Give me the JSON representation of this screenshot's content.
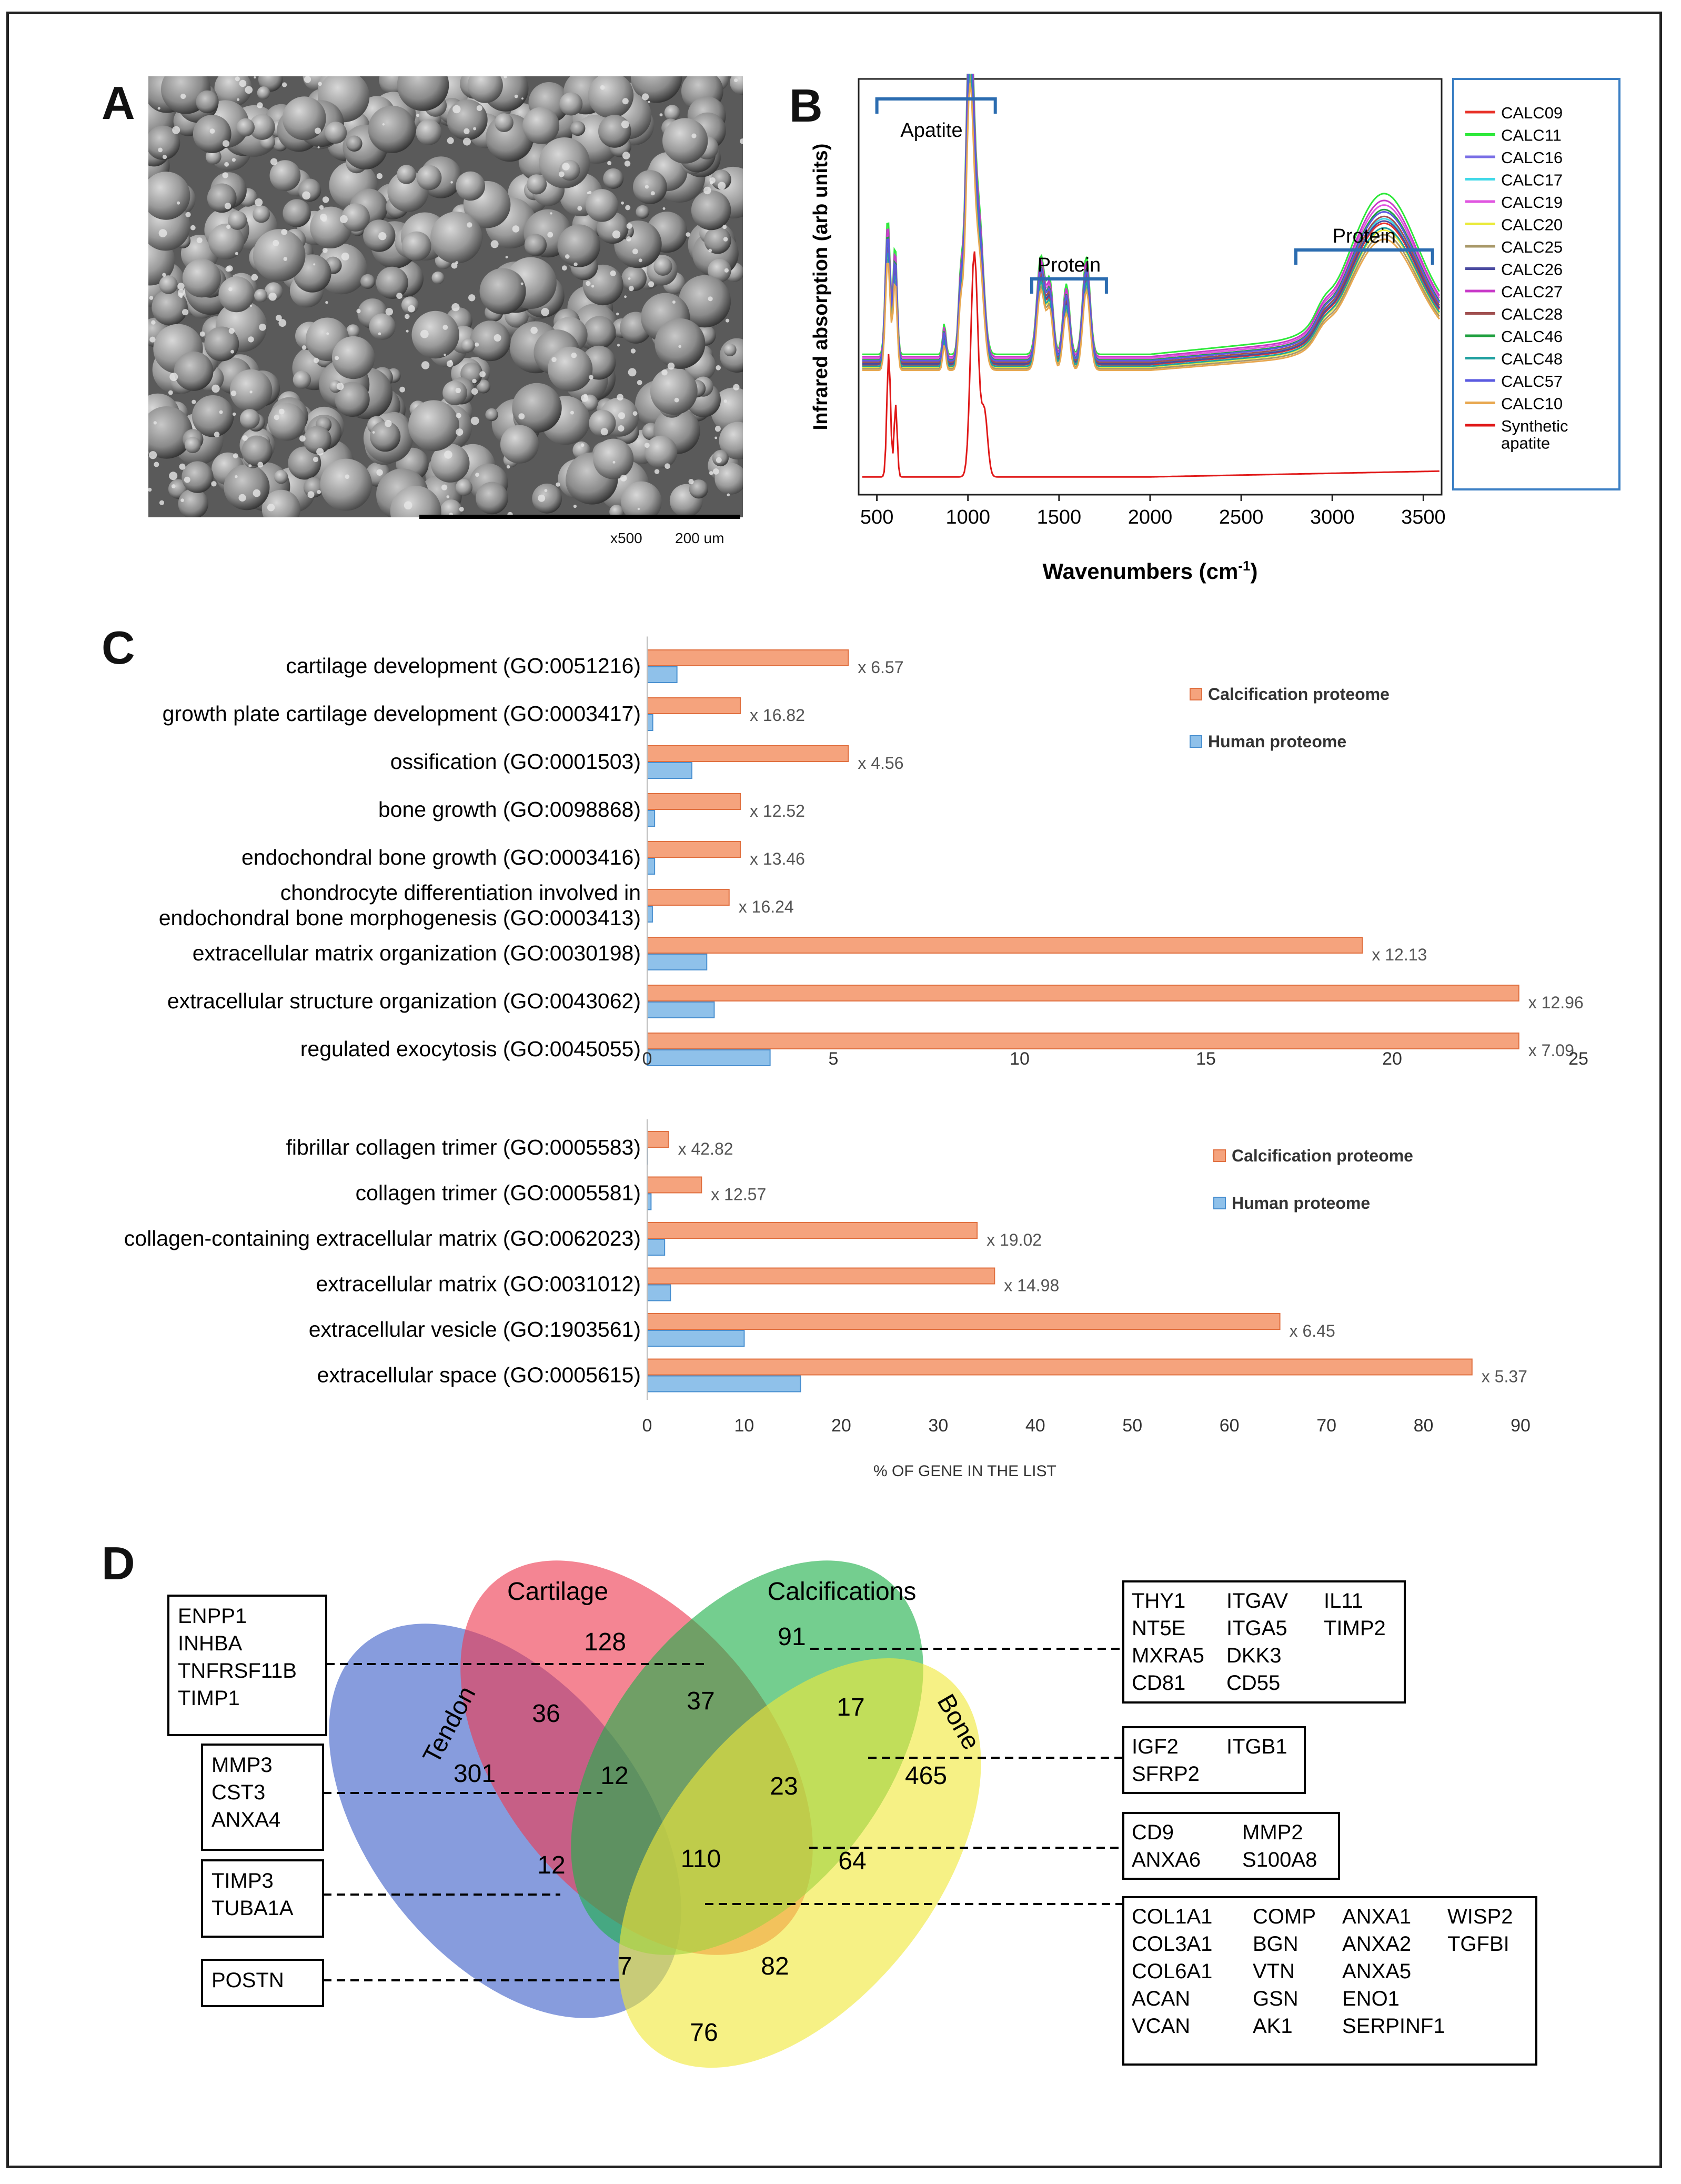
{
  "panels": {
    "a": "A",
    "b": "B",
    "c": "C",
    "d": "D"
  },
  "sem": {
    "magnification": "x500",
    "scale": "200 um"
  },
  "ir": {
    "ylabel": "Infrared absorption (arb units)",
    "xlabel_main": "Wavenumbers (cm",
    "xlabel_sup": "-1",
    "xlabel_close": ")",
    "ticks": [
      "500",
      "1000",
      "1500",
      "2000",
      "2500",
      "3000",
      "3500"
    ],
    "bracket_apatite": "Apatite",
    "bracket_protein1": "Protein",
    "bracket_protein2": "Protein",
    "legend": [
      {
        "name": "CALC09",
        "color": "#e8332a"
      },
      {
        "name": "CALC11",
        "color": "#2ee83a"
      },
      {
        "name": "CALC16",
        "color": "#7a6fe6"
      },
      {
        "name": "CALC17",
        "color": "#3fd8e8"
      },
      {
        "name": "CALC19",
        "color": "#e055e0"
      },
      {
        "name": "CALC20",
        "color": "#eaea3a"
      },
      {
        "name": "CALC25",
        "color": "#a89868"
      },
      {
        "name": "CALC26",
        "color": "#4a4aa0"
      },
      {
        "name": "CALC27",
        "color": "#c83ac8"
      },
      {
        "name": "CALC28",
        "color": "#a05050"
      },
      {
        "name": "CALC46",
        "color": "#20a040"
      },
      {
        "name": "CALC48",
        "color": "#20a0a0"
      },
      {
        "name": "CALC57",
        "color": "#5a5ae0"
      },
      {
        "name": "CALC10",
        "color": "#e8a850"
      },
      {
        "name": "Synthetic",
        "color": "#e01818"
      }
    ],
    "legend_extra": "apatite"
  },
  "chart_data": [
    {
      "type": "bar",
      "title": "",
      "categories": [
        "cartilage development (GO:0051216)",
        "growth plate cartilage development (GO:0003417)",
        "ossification (GO:0001503)",
        "bone growth (GO:0098868)",
        "endochondral bone growth (GO:0003416)",
        "chondrocyte differentiation involved in endochondral bone morphogenesis (GO:0003413)",
        "extracellular matrix organization (GO:0030198)",
        "extracellular structure organization (GO:0043062)",
        "regulated exocytosis (GO:0045055)"
      ],
      "category_lines": [
        [
          "cartilage development (GO:0051216)"
        ],
        [
          "growth plate cartilage development (GO:0003417)"
        ],
        [
          "ossification (GO:0001503)"
        ],
        [
          "bone growth (GO:0098868)"
        ],
        [
          "endochondral bone growth (GO:0003416)"
        ],
        [
          "chondrocyte differentiation involved in",
          "endochondral bone morphogenesis (GO:0003413)"
        ],
        [
          "extracellular matrix organization (GO:0030198)"
        ],
        [
          "extracellular structure organization (GO:0043062)"
        ],
        [
          "regulated exocytosis (GO:0045055)"
        ]
      ],
      "series": [
        {
          "name": "Calcification proteome",
          "color": "#f5a37d",
          "values": [
            5.4,
            2.5,
            5.4,
            2.5,
            2.5,
            2.2,
            19.2,
            23.4,
            23.4
          ]
        },
        {
          "name": "Human proteome",
          "color": "#8fc1ea",
          "values": [
            0.8,
            0.15,
            1.2,
            0.2,
            0.2,
            0.14,
            1.6,
            1.8,
            3.3
          ]
        }
      ],
      "annotations": [
        "x 6.57",
        "x 16.82",
        "x 4.56",
        "x 12.52",
        "x 13.46",
        "x 16.24",
        "x 12.13",
        "x 12.96",
        "x 7.09"
      ],
      "xlim": [
        0,
        25
      ],
      "xticks": [
        "0",
        "5",
        "10",
        "15",
        "20",
        "25"
      ],
      "legend_position": "top-right"
    },
    {
      "type": "bar",
      "title": "",
      "categories": [
        "fibrillar collagen trimer (GO:0005583)",
        "collagen trimer (GO:0005581)",
        "collagen-containing extracellular matrix (GO:0062023)",
        "extracellular matrix (GO:0031012)",
        "extracellular vesicle (GO:1903561)",
        "extracellular space (GO:0005615)"
      ],
      "series": [
        {
          "name": "Calcification proteome",
          "color": "#f5a37d",
          "values": [
            2.2,
            5.6,
            34,
            35.8,
            65.2,
            85
          ]
        },
        {
          "name": "Human proteome",
          "color": "#8fc1ea",
          "values": [
            0.05,
            0.4,
            1.8,
            2.4,
            10,
            15.8
          ]
        }
      ],
      "annotations": [
        "x 42.82",
        "x 12.57",
        "x 19.02",
        "x 14.98",
        "x 6.45",
        "x 5.37"
      ],
      "xlim": [
        0,
        90
      ],
      "xticks": [
        "0",
        "10",
        "20",
        "30",
        "40",
        "50",
        "60",
        "70",
        "80",
        "90"
      ],
      "xlabel": "% OF GENE IN THE LIST",
      "legend_position": "top-right"
    }
  ],
  "venn": {
    "sets": [
      {
        "name": "Tendon",
        "color": "#3d5fc8"
      },
      {
        "name": "Cartilage",
        "color": "#ee3a50"
      },
      {
        "name": "Calcifications",
        "color": "#1fb04a"
      },
      {
        "name": "Bone",
        "color": "#f0e83a"
      }
    ],
    "counts": [
      "128",
      "91",
      "36",
      "37",
      "17",
      "301",
      "12",
      "23",
      "465",
      "12",
      "110",
      "64",
      "7",
      "82",
      "76"
    ],
    "gene_boxes_left": [
      [
        "ENPP1",
        "INHBA",
        "TNFRSF11B",
        "TIMP1"
      ],
      [
        "MMP3",
        "CST3",
        "ANXA4"
      ],
      [
        "TIMP3",
        "TUBA1A"
      ],
      [
        "POSTN"
      ]
    ],
    "gene_boxes_right": [
      [
        "THY1",
        "ITGAV",
        "IL11",
        "NT5E",
        "ITGA5",
        "TIMP2",
        "MXRA5",
        "DKK3",
        "",
        "CD81",
        "CD55",
        ""
      ],
      [
        "IGF2",
        "ITGB1",
        "SFRP2",
        ""
      ],
      [
        "CD9",
        "MMP2",
        "ANXA6",
        "S100A8"
      ],
      [
        "COL1A1",
        "COMP",
        "ANXA1",
        "WISP2",
        "COL3A1",
        "BGN",
        "ANXA2",
        "TGFBI",
        "COL6A1",
        "VTN",
        "ANXA5",
        "",
        "ACAN",
        "GSN",
        "ENO1",
        "",
        "VCAN",
        "AK1",
        "SERPINF1",
        ""
      ]
    ]
  }
}
